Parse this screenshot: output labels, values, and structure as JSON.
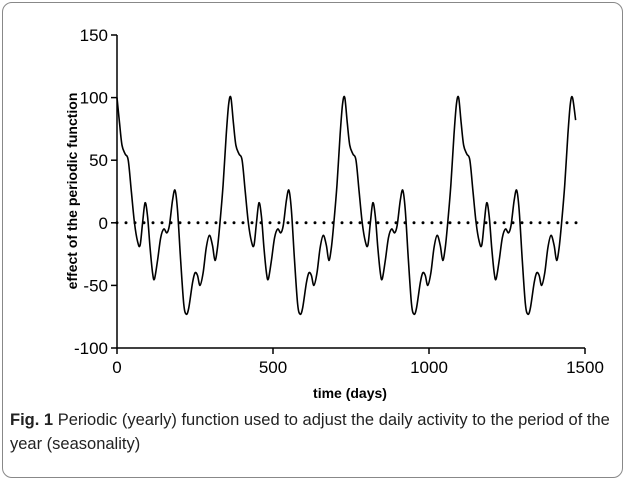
{
  "chart_data": {
    "type": "line",
    "xlabel": "time (days)",
    "ylabel": "effect of the periodic function",
    "xlim": [
      0,
      1500
    ],
    "xticks": [
      0,
      500,
      1000,
      1500
    ],
    "ylim": [
      -100,
      150
    ],
    "yticks": [
      -100,
      -50,
      0,
      50,
      100,
      150
    ],
    "reference_line": 0,
    "series": [
      {
        "color": "#000000",
        "x": [
          0,
          8,
          16,
          26,
          36,
          46,
          56,
          66,
          74,
          82,
          90,
          98,
          106,
          114,
          120,
          130,
          140,
          150,
          160,
          168,
          178,
          186,
          194,
          204,
          214,
          222,
          230,
          242,
          250,
          258,
          266,
          276,
          286,
          296,
          306,
          314,
          322,
          330,
          340,
          350,
          358,
          365,
          373,
          381,
          391,
          401,
          411,
          421,
          431,
          439,
          447,
          455,
          463,
          471,
          479,
          485,
          495,
          505,
          515,
          525,
          533,
          543,
          551,
          559,
          569,
          579,
          587,
          595,
          607,
          615,
          623,
          631,
          641,
          651,
          661,
          671,
          679,
          687,
          695,
          705,
          715,
          723,
          730,
          738,
          746,
          756,
          766,
          776,
          786,
          796,
          804,
          812,
          820,
          828,
          836,
          844,
          850,
          860,
          870,
          880,
          890,
          898,
          908,
          916,
          924,
          934,
          944,
          952,
          960,
          972,
          980,
          988,
          996,
          1006,
          1016,
          1026,
          1036,
          1044,
          1052,
          1060,
          1070,
          1080,
          1088,
          1095,
          1103,
          1111,
          1121,
          1131,
          1141,
          1151,
          1161,
          1169,
          1177,
          1185,
          1193,
          1201,
          1209,
          1215,
          1225,
          1235,
          1245,
          1255,
          1263,
          1273,
          1281,
          1289,
          1299,
          1309,
          1317,
          1325,
          1337,
          1345,
          1353,
          1361,
          1371,
          1381,
          1391,
          1401,
          1409,
          1417,
          1425,
          1435,
          1445,
          1453,
          1460,
          1470
        ],
        "values": [
          100,
          80,
          62,
          55,
          50,
          25,
          0,
          -15,
          -18,
          0,
          16,
          5,
          -20,
          -40,
          -45,
          -30,
          -12,
          -5,
          -8,
          -2,
          18,
          26,
          10,
          -30,
          -65,
          -73,
          -68,
          -48,
          -40,
          -42,
          -50,
          -40,
          -20,
          -10,
          -18,
          -30,
          -20,
          0,
          30,
          70,
          95,
          100,
          80,
          62,
          55,
          50,
          25,
          0,
          -15,
          -18,
          0,
          16,
          5,
          -20,
          -40,
          -45,
          -30,
          -12,
          -5,
          -8,
          -2,
          18,
          26,
          10,
          -30,
          -65,
          -73,
          -68,
          -48,
          -40,
          -42,
          -50,
          -40,
          -20,
          -10,
          -18,
          -30,
          -20,
          0,
          30,
          70,
          95,
          100,
          80,
          62,
          55,
          50,
          25,
          0,
          -15,
          -18,
          0,
          16,
          5,
          -20,
          -40,
          -45,
          -30,
          -12,
          -5,
          -8,
          -2,
          18,
          26,
          10,
          -30,
          -65,
          -73,
          -68,
          -48,
          -40,
          -42,
          -50,
          -40,
          -20,
          -10,
          -18,
          -30,
          -20,
          0,
          30,
          70,
          95,
          100,
          80,
          62,
          55,
          50,
          25,
          0,
          -15,
          -18,
          0,
          16,
          5,
          -20,
          -40,
          -45,
          -30,
          -12,
          -5,
          -8,
          -2,
          18,
          26,
          10,
          -30,
          -65,
          -73,
          -68,
          -48,
          -40,
          -42,
          -50,
          -40,
          -20,
          -10,
          -18,
          -30,
          -20,
          0,
          30,
          70,
          95,
          100,
          82
        ]
      }
    ]
  },
  "caption": {
    "label": "Fig. 1",
    "text": "Periodic (yearly) function used to adjust the daily activity to the period of the year (seasonality)"
  }
}
